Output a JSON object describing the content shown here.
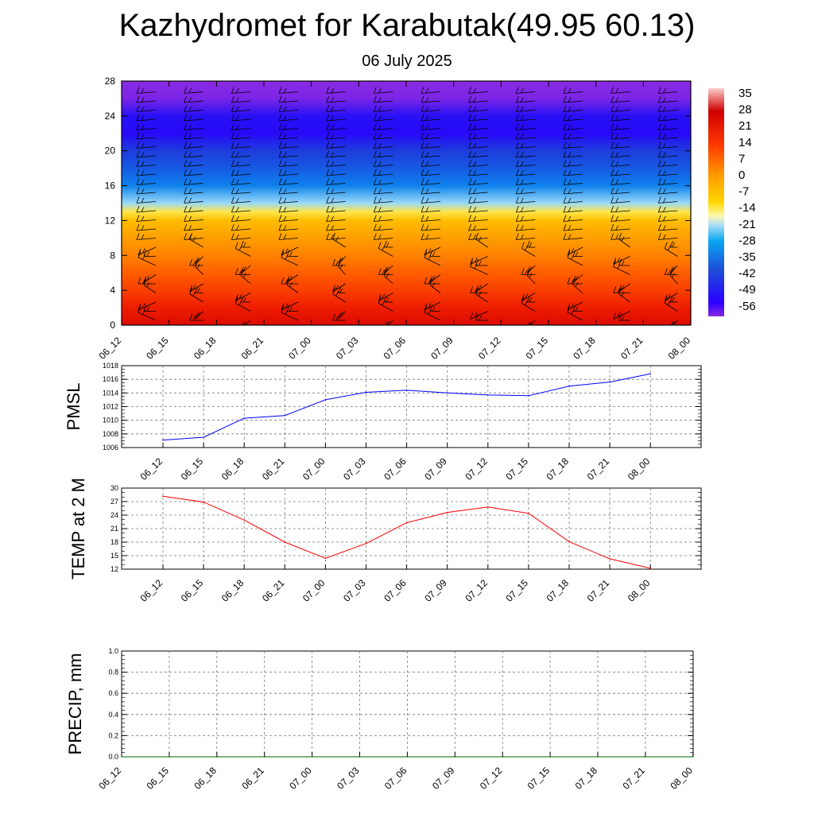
{
  "header": {
    "title": "Kazhydromet for Karabutak(49.95 60.13)",
    "subtitle": "06 July 2025"
  },
  "chart_data": [
    {
      "type": "heatmap",
      "name": "cross-section",
      "x_labels": [
        "06_12",
        "06_15",
        "06_18",
        "06_21",
        "07_00",
        "07_03",
        "07_06",
        "07_09",
        "07_12",
        "07_15",
        "07_18",
        "07_21",
        "08_00"
      ],
      "y_ticks": [
        0,
        4,
        8,
        12,
        16,
        20,
        24,
        28
      ],
      "ylim": [
        0,
        28
      ],
      "colorbar": {
        "labels": [
          "35",
          "28",
          "21",
          "14",
          "7",
          "0",
          "-7",
          "-14",
          "-21",
          "-28",
          "-35",
          "-42",
          "-49",
          "-56"
        ],
        "range": [
          -63,
          38
        ]
      },
      "levels": [
        0,
        2,
        4,
        6,
        8,
        10,
        12,
        13,
        14,
        16,
        18,
        20,
        22,
        24,
        26,
        28
      ],
      "level_values": [
        24,
        20,
        16,
        12,
        7,
        2,
        -3,
        -10,
        -22,
        -38,
        -44,
        -49,
        -55,
        -54,
        -62,
        -64
      ],
      "overlay": "wind barbs"
    },
    {
      "type": "line",
      "name": "pmsl",
      "ylabel": "PMSL",
      "x_labels": [
        "06_12",
        "06_15",
        "06_18",
        "06_21",
        "07_00",
        "07_03",
        "07_06",
        "07_09",
        "07_12",
        "07_15",
        "07_18",
        "07_21",
        "08_00"
      ],
      "values": [
        1007.1,
        1007.5,
        1010.3,
        1010.7,
        1013.0,
        1014.1,
        1014.4,
        1014.0,
        1013.7,
        1013.6,
        1015.0,
        1015.6,
        1016.8
      ],
      "y_ticks": [
        1006,
        1008,
        1010,
        1012,
        1014,
        1016,
        1018
      ],
      "ylim": [
        1006,
        1018
      ],
      "color": "#0000ff"
    },
    {
      "type": "line",
      "name": "temp2m",
      "ylabel": "TEMP at 2 M",
      "x_labels": [
        "06_12",
        "06_15",
        "06_18",
        "06_21",
        "07_00",
        "07_03",
        "07_06",
        "07_09",
        "07_12",
        "07_15",
        "07_18",
        "07_21",
        "08_00"
      ],
      "values": [
        28.2,
        26.9,
        22.9,
        18.0,
        14.4,
        17.7,
        22.3,
        24.6,
        25.8,
        24.4,
        18.1,
        14.3,
        12.2
      ],
      "y_ticks": [
        12,
        15,
        18,
        21,
        24,
        27,
        30
      ],
      "ylim": [
        12,
        30
      ],
      "color": "#ff0000"
    },
    {
      "type": "line",
      "name": "precip",
      "ylabel": "PRECIP, mm",
      "x_labels": [
        "06_12",
        "06_15",
        "06_18",
        "06_21",
        "07_00",
        "07_03",
        "07_06",
        "07_09",
        "07_12",
        "07_15",
        "07_18",
        "07_21",
        "08_00"
      ],
      "values": [
        0,
        0,
        0,
        0,
        0,
        0,
        0,
        0,
        0,
        0,
        0,
        0,
        0
      ],
      "y_ticks": [
        "0.0",
        "0.2",
        "0.4",
        "0.6",
        "0.8",
        "1.0"
      ],
      "ylim": [
        0,
        1
      ],
      "color": "#006400"
    }
  ]
}
